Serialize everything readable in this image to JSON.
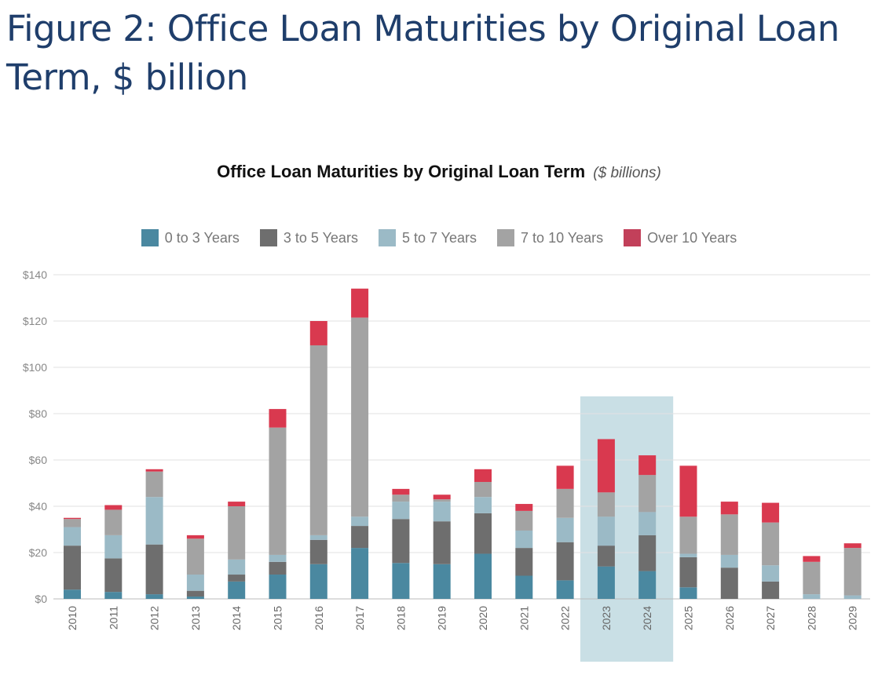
{
  "figure": {
    "title": "Figure 2: Office Loan Maturities by Original Loan Term, $ billion"
  },
  "chart_data": {
    "type": "bar",
    "stacked": true,
    "title": "Office Loan Maturities by Original Loan Term",
    "subtitle": "($ billions)",
    "categories": [
      "2010",
      "2011",
      "2012",
      "2013",
      "2014",
      "2015",
      "2016",
      "2017",
      "2018",
      "2019",
      "2020",
      "2021",
      "2022",
      "2023",
      "2024",
      "2025",
      "2026",
      "2027",
      "2028",
      "2029"
    ],
    "series": [
      {
        "name": "0 to 3 Years",
        "color": "#4a88a0",
        "values": [
          4,
          3,
          2,
          1,
          7.5,
          10.5,
          15,
          22,
          15.5,
          15,
          19.5,
          10,
          8,
          14,
          12,
          5,
          0,
          0,
          0,
          0
        ]
      },
      {
        "name": "3 to 5 Years",
        "color": "#6e6e6e",
        "values": [
          19,
          14.5,
          21.5,
          2.5,
          3,
          5.5,
          10.5,
          9.5,
          19,
          18.5,
          17.5,
          12,
          16.5,
          9,
          15.5,
          13,
          13.5,
          7.5,
          0,
          0
        ]
      },
      {
        "name": "5 to 7 Years",
        "color": "#9bbac6",
        "values": [
          8,
          10,
          20.5,
          7,
          6.5,
          3,
          2,
          4,
          7.5,
          8.5,
          7,
          7.5,
          10.5,
          12.5,
          10,
          1.5,
          5.5,
          7,
          2,
          1.5
        ]
      },
      {
        "name": "7 to 10 Years",
        "color": "#a3a3a3",
        "values": [
          3.5,
          11,
          11,
          15.5,
          23,
          55,
          82,
          86,
          3,
          1,
          6.5,
          8.5,
          12.5,
          10.5,
          16,
          16,
          17.5,
          18.5,
          14,
          20.5
        ]
      },
      {
        "name": "Over 10 Years",
        "color": "#d9394f",
        "values": [
          0.5,
          2,
          1,
          1.5,
          2,
          8,
          10.5,
          12.5,
          2.5,
          2,
          5.5,
          3,
          10,
          23,
          8.5,
          22,
          5.5,
          8.5,
          2.5,
          2
        ]
      }
    ],
    "yaxis": {
      "min": 0,
      "max": 140,
      "step": 20,
      "tick_labels": [
        "$0",
        "$20",
        "$40",
        "$60",
        "$80",
        "$100",
        "$120",
        "$140"
      ]
    },
    "highlight_categories": [
      "2023",
      "2024"
    ],
    "highlight_color": "#c9dfe5",
    "grid": true,
    "legend_position": "top"
  }
}
